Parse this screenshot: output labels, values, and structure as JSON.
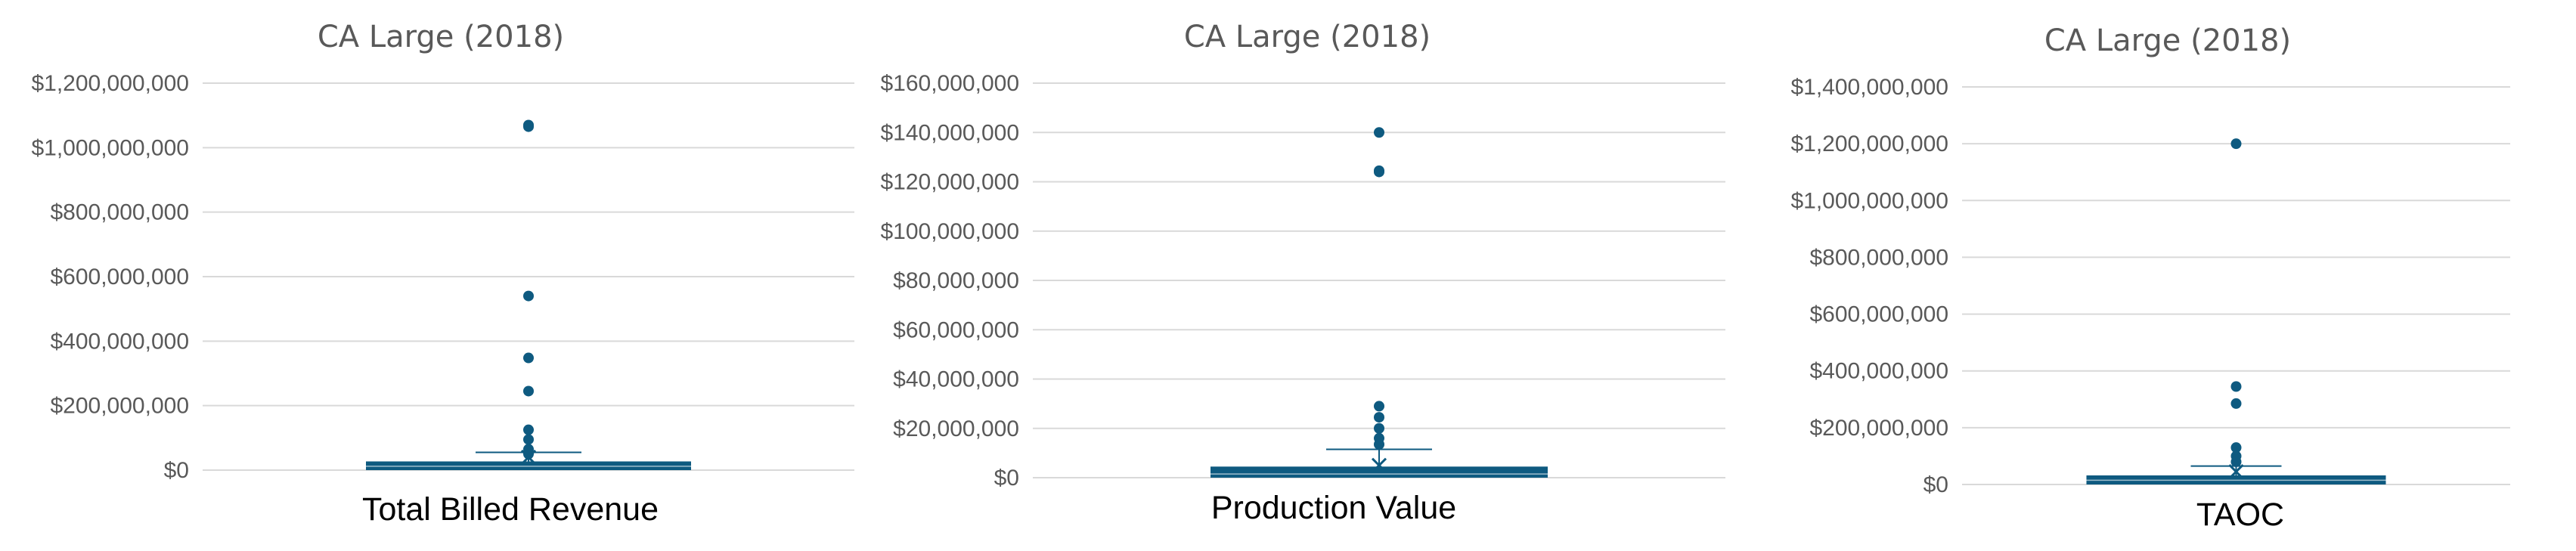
{
  "chart_data": [
    {
      "type": "box",
      "title": "CA Large (2018)",
      "xlabel": "Total Billed Revenue",
      "ylabel": "",
      "ylim": [
        0,
        1200000000
      ],
      "ticks": [
        0,
        200000000,
        400000000,
        600000000,
        800000000,
        1000000000,
        1200000000
      ],
      "tick_labels": [
        "$0",
        "$200,000,000",
        "$400,000,000",
        "$600,000,000",
        "$800,000,000",
        "$1,000,000,000",
        "$1,200,000,000"
      ],
      "box": {
        "q1": 0,
        "median": 12000000,
        "q3": 27000000,
        "whisker_low": 0,
        "whisker_high": 55000000,
        "mean": 40000000
      },
      "outliers": [
        1070000000,
        1065000000,
        540000000,
        348000000,
        245000000,
        125000000,
        95000000,
        65000000,
        50000000
      ]
    },
    {
      "type": "box",
      "title": "CA Large (2018)",
      "xlabel": "Production Value",
      "ylabel": "",
      "ylim": [
        0,
        160000000
      ],
      "ticks": [
        0,
        20000000,
        40000000,
        60000000,
        80000000,
        100000000,
        120000000,
        140000000,
        160000000
      ],
      "tick_labels": [
        "$0",
        "$20,000,000",
        "$40,000,000",
        "$60,000,000",
        "$80,000,000",
        "$100,000,000",
        "$120,000,000",
        "$140,000,000",
        "$160,000,000"
      ],
      "box": {
        "q1": 0,
        "median": 1500000,
        "q3": 4500000,
        "whisker_low": 0,
        "whisker_high": 11500000,
        "mean": 5000000
      },
      "outliers": [
        140000000,
        124500000,
        124000000,
        29000000,
        24500000,
        20000000,
        16000000,
        13500000
      ]
    },
    {
      "type": "box",
      "title": "CA Large (2018)",
      "xlabel": "TAOC",
      "ylabel": "",
      "ylim": [
        0,
        1400000000
      ],
      "ticks": [
        0,
        200000000,
        400000000,
        600000000,
        800000000,
        1000000000,
        1200000000,
        1400000000
      ],
      "tick_labels": [
        "$0",
        "$200,000,000",
        "$400,000,000",
        "$600,000,000",
        "$800,000,000",
        "$1,000,000,000",
        "$1,200,000,000",
        "$1,400,000,000"
      ],
      "box": {
        "q1": 0,
        "median": 15000000,
        "q3": 32000000,
        "whisker_low": 0,
        "whisker_high": 65000000,
        "mean": 45000000
      },
      "outliers": [
        1200000000,
        345000000,
        285000000,
        130000000,
        100000000,
        80000000
      ]
    }
  ],
  "colors": {
    "accent": "#0e5a80",
    "grid": "#d9d9d9",
    "axis_text": "#595959"
  }
}
